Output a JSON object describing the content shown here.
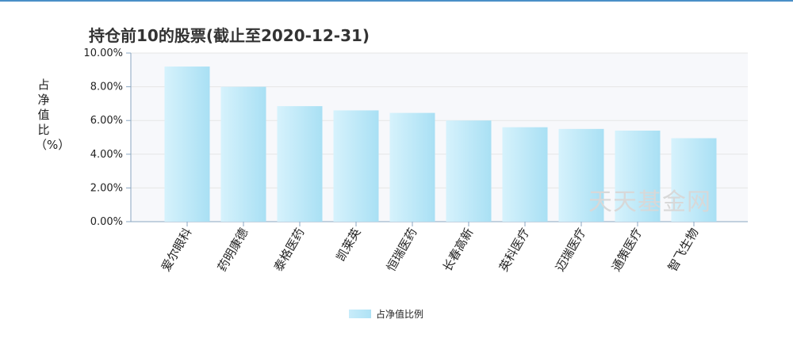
{
  "chart_data": {
    "type": "bar",
    "title": "持仓前10的股票(截止至2020-12-31)",
    "ylabel": "占净值比（%）",
    "categories": [
      "爱尔眼科",
      "药明康德",
      "泰格医药",
      "凯莱英",
      "恒瑞医药",
      "长春高新",
      "英科医疗",
      "迈瑞医疗",
      "通策医疗",
      "智飞生物"
    ],
    "series": [
      {
        "name": "占净值比例",
        "values": [
          9.2,
          8.0,
          6.85,
          6.6,
          6.45,
          6.0,
          5.6,
          5.5,
          5.4,
          4.95
        ]
      }
    ],
    "ylim": [
      0,
      10
    ],
    "yticks": [
      "0.00%",
      "2.00%",
      "4.00%",
      "6.00%",
      "8.00%",
      "10.00%"
    ],
    "legend_position": "bottom",
    "grid": true,
    "colors": {
      "bar_light": "#d6f2fc",
      "bar_dark": "#a9e0f4",
      "axis": "#8aa6c1",
      "grid": "#e6e6e6",
      "plot_bg": "#f7f8fb"
    }
  },
  "watermark": "天天基金网"
}
